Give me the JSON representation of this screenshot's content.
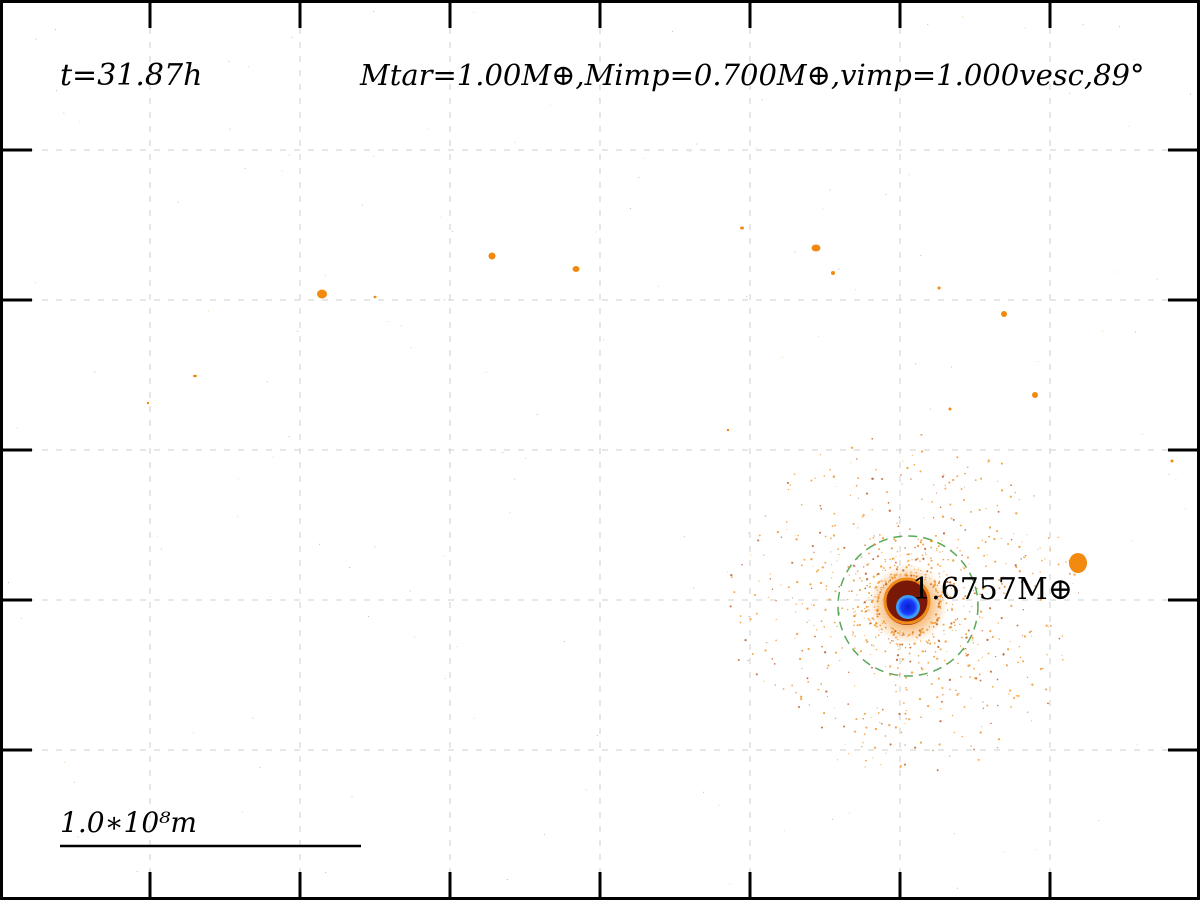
{
  "time_label": "t=31.87h",
  "params_label": "Mtar=1.00M⊕,Mimp=0.700M⊕,vimp=1.000vesc,89°",
  "remnant_mass_label": "1.6757M⊕",
  "scale_bar_label": "1.0∗10⁸m",
  "colors": {
    "background": "#ffffff",
    "frame": "#000000",
    "grid": "#cfcfcf",
    "debris": "#f28a0f",
    "debris_dark": "#b4460a",
    "core": "#1a3cff",
    "core_light": "#3aa0ff",
    "hill_sphere": "#5aa85a"
  }
}
